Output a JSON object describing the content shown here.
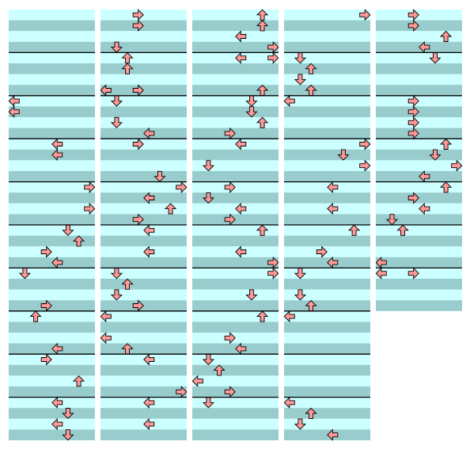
{
  "step_chart": {
    "lanes": 8,
    "columns": [
      {
        "beats": 40,
        "notes": [
          {
            "beat": 8,
            "lane": 0,
            "dir": "left"
          },
          {
            "beat": 9,
            "lane": 0,
            "dir": "left"
          },
          {
            "beat": 12,
            "lane": 4,
            "dir": "left"
          },
          {
            "beat": 13,
            "lane": 4,
            "dir": "left"
          },
          {
            "beat": 16,
            "lane": 7,
            "dir": "right"
          },
          {
            "beat": 18,
            "lane": 7,
            "dir": "right"
          },
          {
            "beat": 20,
            "lane": 5,
            "dir": "down"
          },
          {
            "beat": 21,
            "lane": 6,
            "dir": "up"
          },
          {
            "beat": 22,
            "lane": 3,
            "dir": "right"
          },
          {
            "beat": 23,
            "lane": 4,
            "dir": "left"
          },
          {
            "beat": 24,
            "lane": 1,
            "dir": "down"
          },
          {
            "beat": 27,
            "lane": 3,
            "dir": "right"
          },
          {
            "beat": 28,
            "lane": 2,
            "dir": "up"
          },
          {
            "beat": 31,
            "lane": 4,
            "dir": "left"
          },
          {
            "beat": 32,
            "lane": 3,
            "dir": "right"
          },
          {
            "beat": 34,
            "lane": 6,
            "dir": "up"
          },
          {
            "beat": 36,
            "lane": 4,
            "dir": "left"
          },
          {
            "beat": 37,
            "lane": 5,
            "dir": "down"
          },
          {
            "beat": 38,
            "lane": 4,
            "dir": "left"
          },
          {
            "beat": 39,
            "lane": 5,
            "dir": "down"
          }
        ]
      },
      {
        "beats": 40,
        "notes": [
          {
            "beat": 0,
            "lane": 3,
            "dir": "right"
          },
          {
            "beat": 1,
            "lane": 3,
            "dir": "right"
          },
          {
            "beat": 3,
            "lane": 1,
            "dir": "down"
          },
          {
            "beat": 4,
            "lane": 2,
            "dir": "up"
          },
          {
            "beat": 5,
            "lane": 2,
            "dir": "up"
          },
          {
            "beat": 7,
            "lane": 0,
            "dir": "left"
          },
          {
            "beat": 7,
            "lane": 3,
            "dir": "right"
          },
          {
            "beat": 8,
            "lane": 1,
            "dir": "down"
          },
          {
            "beat": 10,
            "lane": 1,
            "dir": "down"
          },
          {
            "beat": 11,
            "lane": 4,
            "dir": "left"
          },
          {
            "beat": 12,
            "lane": 3,
            "dir": "right"
          },
          {
            "beat": 15,
            "lane": 5,
            "dir": "down"
          },
          {
            "beat": 16,
            "lane": 7,
            "dir": "right"
          },
          {
            "beat": 17,
            "lane": 4,
            "dir": "left"
          },
          {
            "beat": 18,
            "lane": 6,
            "dir": "up"
          },
          {
            "beat": 19,
            "lane": 3,
            "dir": "right"
          },
          {
            "beat": 20,
            "lane": 4,
            "dir": "left"
          },
          {
            "beat": 22,
            "lane": 4,
            "dir": "left"
          },
          {
            "beat": 24,
            "lane": 1,
            "dir": "down"
          },
          {
            "beat": 25,
            "lane": 2,
            "dir": "up"
          },
          {
            "beat": 26,
            "lane": 1,
            "dir": "down"
          },
          {
            "beat": 27,
            "lane": 3,
            "dir": "right"
          },
          {
            "beat": 28,
            "lane": 0,
            "dir": "left"
          },
          {
            "beat": 30,
            "lane": 0,
            "dir": "left"
          },
          {
            "beat": 31,
            "lane": 2,
            "dir": "up"
          },
          {
            "beat": 32,
            "lane": 4,
            "dir": "left"
          },
          {
            "beat": 35,
            "lane": 7,
            "dir": "right"
          },
          {
            "beat": 36,
            "lane": 4,
            "dir": "left"
          },
          {
            "beat": 38,
            "lane": 4,
            "dir": "left"
          }
        ]
      },
      {
        "beats": 40,
        "notes": [
          {
            "beat": 0,
            "lane": 6,
            "dir": "up"
          },
          {
            "beat": 1,
            "lane": 6,
            "dir": "up"
          },
          {
            "beat": 2,
            "lane": 4,
            "dir": "left"
          },
          {
            "beat": 3,
            "lane": 7,
            "dir": "right"
          },
          {
            "beat": 4,
            "lane": 4,
            "dir": "left"
          },
          {
            "beat": 4,
            "lane": 7,
            "dir": "right"
          },
          {
            "beat": 7,
            "lane": 6,
            "dir": "up"
          },
          {
            "beat": 8,
            "lane": 5,
            "dir": "down"
          },
          {
            "beat": 9,
            "lane": 5,
            "dir": "down"
          },
          {
            "beat": 10,
            "lane": 6,
            "dir": "up"
          },
          {
            "beat": 11,
            "lane": 3,
            "dir": "right"
          },
          {
            "beat": 12,
            "lane": 4,
            "dir": "left"
          },
          {
            "beat": 14,
            "lane": 1,
            "dir": "down"
          },
          {
            "beat": 16,
            "lane": 3,
            "dir": "right"
          },
          {
            "beat": 17,
            "lane": 1,
            "dir": "down"
          },
          {
            "beat": 18,
            "lane": 4,
            "dir": "left"
          },
          {
            "beat": 19,
            "lane": 3,
            "dir": "right"
          },
          {
            "beat": 20,
            "lane": 6,
            "dir": "up"
          },
          {
            "beat": 22,
            "lane": 4,
            "dir": "left"
          },
          {
            "beat": 23,
            "lane": 7,
            "dir": "right"
          },
          {
            "beat": 24,
            "lane": 7,
            "dir": "right"
          },
          {
            "beat": 26,
            "lane": 5,
            "dir": "down"
          },
          {
            "beat": 28,
            "lane": 6,
            "dir": "up"
          },
          {
            "beat": 30,
            "lane": 3,
            "dir": "right"
          },
          {
            "beat": 31,
            "lane": 4,
            "dir": "left"
          },
          {
            "beat": 32,
            "lane": 1,
            "dir": "down"
          },
          {
            "beat": 33,
            "lane": 2,
            "dir": "up"
          },
          {
            "beat": 34,
            "lane": 0,
            "dir": "left"
          },
          {
            "beat": 35,
            "lane": 3,
            "dir": "right"
          },
          {
            "beat": 36,
            "lane": 1,
            "dir": "down"
          }
        ]
      },
      {
        "beats": 40,
        "notes": [
          {
            "beat": 0,
            "lane": 7,
            "dir": "right"
          },
          {
            "beat": 4,
            "lane": 1,
            "dir": "down"
          },
          {
            "beat": 5,
            "lane": 2,
            "dir": "up"
          },
          {
            "beat": 6,
            "lane": 1,
            "dir": "down"
          },
          {
            "beat": 7,
            "lane": 2,
            "dir": "up"
          },
          {
            "beat": 8,
            "lane": 0,
            "dir": "left"
          },
          {
            "beat": 12,
            "lane": 7,
            "dir": "right"
          },
          {
            "beat": 13,
            "lane": 5,
            "dir": "down"
          },
          {
            "beat": 14,
            "lane": 7,
            "dir": "right"
          },
          {
            "beat": 16,
            "lane": 4,
            "dir": "left"
          },
          {
            "beat": 18,
            "lane": 4,
            "dir": "left"
          },
          {
            "beat": 20,
            "lane": 6,
            "dir": "up"
          },
          {
            "beat": 22,
            "lane": 3,
            "dir": "right"
          },
          {
            "beat": 23,
            "lane": 4,
            "dir": "left"
          },
          {
            "beat": 24,
            "lane": 1,
            "dir": "down"
          },
          {
            "beat": 26,
            "lane": 1,
            "dir": "down"
          },
          {
            "beat": 27,
            "lane": 2,
            "dir": "up"
          },
          {
            "beat": 28,
            "lane": 0,
            "dir": "left"
          },
          {
            "beat": 36,
            "lane": 0,
            "dir": "left"
          },
          {
            "beat": 37,
            "lane": 2,
            "dir": "up"
          },
          {
            "beat": 38,
            "lane": 1,
            "dir": "down"
          },
          {
            "beat": 39,
            "lane": 4,
            "dir": "left"
          }
        ]
      },
      {
        "beats": 28,
        "notes": [
          {
            "beat": 0,
            "lane": 3,
            "dir": "right"
          },
          {
            "beat": 1,
            "lane": 3,
            "dir": "right"
          },
          {
            "beat": 2,
            "lane": 6,
            "dir": "up"
          },
          {
            "beat": 3,
            "lane": 4,
            "dir": "left"
          },
          {
            "beat": 4,
            "lane": 5,
            "dir": "down"
          },
          {
            "beat": 8,
            "lane": 3,
            "dir": "right"
          },
          {
            "beat": 9,
            "lane": 3,
            "dir": "right"
          },
          {
            "beat": 10,
            "lane": 3,
            "dir": "right"
          },
          {
            "beat": 11,
            "lane": 3,
            "dir": "right"
          },
          {
            "beat": 12,
            "lane": 6,
            "dir": "up"
          },
          {
            "beat": 13,
            "lane": 5,
            "dir": "down"
          },
          {
            "beat": 14,
            "lane": 7,
            "dir": "right"
          },
          {
            "beat": 15,
            "lane": 4,
            "dir": "left"
          },
          {
            "beat": 16,
            "lane": 6,
            "dir": "up"
          },
          {
            "beat": 17,
            "lane": 3,
            "dir": "right"
          },
          {
            "beat": 18,
            "lane": 4,
            "dir": "left"
          },
          {
            "beat": 19,
            "lane": 1,
            "dir": "down"
          },
          {
            "beat": 20,
            "lane": 2,
            "dir": "up"
          },
          {
            "beat": 23,
            "lane": 0,
            "dir": "left"
          },
          {
            "beat": 24,
            "lane": 0,
            "dir": "left"
          },
          {
            "beat": 24,
            "lane": 3,
            "dir": "right"
          }
        ]
      }
    ]
  }
}
